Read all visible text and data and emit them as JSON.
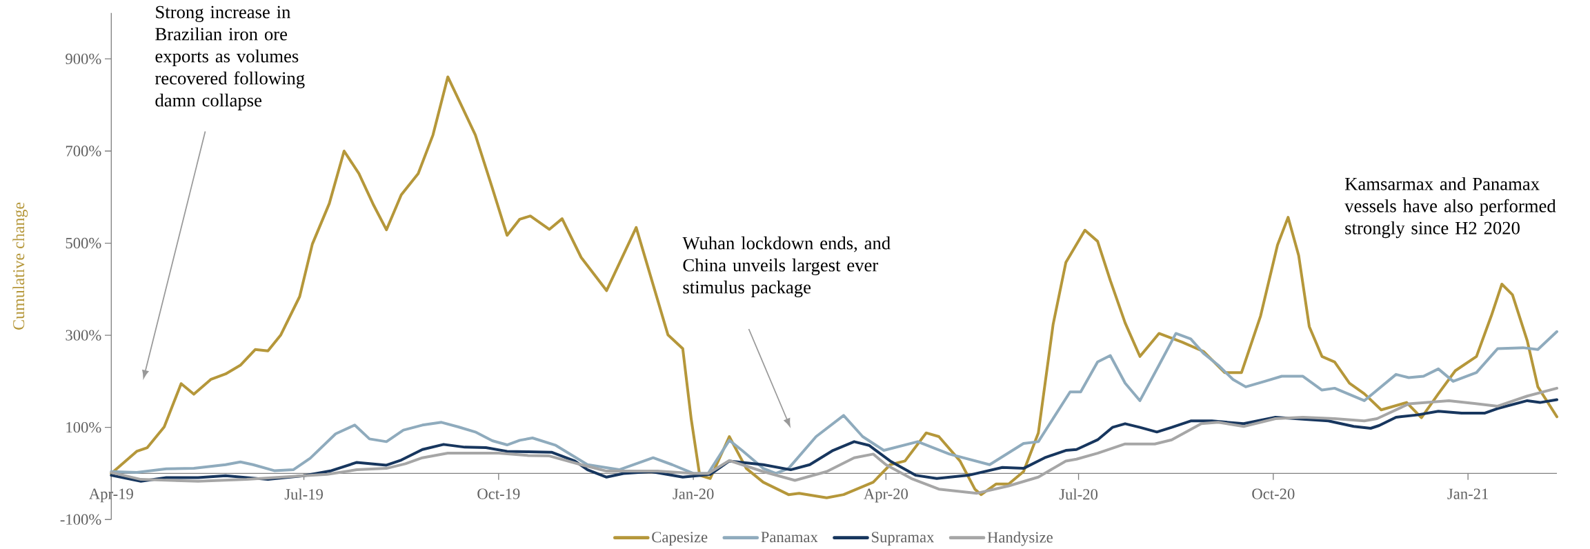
{
  "chart_data": {
    "type": "line",
    "ylabel": "Cumulative change",
    "xlim": [
      "2019-04-01",
      "2021-02-12"
    ],
    "xticks": [
      {
        "value": "2019-04-01",
        "label": "Apr-19"
      },
      {
        "value": "2019-07-01",
        "label": "Jul-19"
      },
      {
        "value": "2019-10-01",
        "label": "Oct-19"
      },
      {
        "value": "2020-01-01",
        "label": "Jan-20"
      },
      {
        "value": "2020-04-01",
        "label": "Apr-20"
      },
      {
        "value": "2020-07-01",
        "label": "Jul-20"
      },
      {
        "value": "2020-10-01",
        "label": "Oct-20"
      },
      {
        "value": "2021-01-01",
        "label": "Jan-21"
      }
    ],
    "ylim": [
      -100,
      1000
    ],
    "yticks": [
      {
        "value": -100,
        "label": "-100%"
      },
      {
        "value": 100,
        "label": "100%"
      },
      {
        "value": 300,
        "label": "300%"
      },
      {
        "value": 500,
        "label": "500%"
      },
      {
        "value": 700,
        "label": "700%"
      },
      {
        "value": 900,
        "label": "900%"
      }
    ],
    "legend": "bottom",
    "annotations": [
      "Strong increase in Brazilian iron ore exports as volumes recovered following damn collapse",
      "Wuhan lockdown ends, and China unveils largest ever stimulus package",
      "Kamsarmax and Panamax vessels have also performed strongly since H2 2020"
    ],
    "series": [
      {
        "name": "Capesize",
        "color": "#b5973a",
        "x": [
          "2019-04-01",
          "2019-04-13",
          "2019-04-18",
          "2019-04-26",
          "2019-05-04",
          "2019-05-10",
          "2019-05-18",
          "2019-05-25",
          "2019-06-01",
          "2019-06-08",
          "2019-06-14",
          "2019-06-20",
          "2019-06-29",
          "2019-07-05",
          "2019-07-13",
          "2019-07-20",
          "2019-07-27",
          "2019-08-03",
          "2019-08-09",
          "2019-08-16",
          "2019-08-24",
          "2019-08-31",
          "2019-09-07",
          "2019-09-13",
          "2019-09-20",
          "2019-09-28",
          "2019-10-05",
          "2019-10-11",
          "2019-10-16",
          "2019-10-25",
          "2019-10-31",
          "2019-11-09",
          "2019-11-21",
          "2019-12-05",
          "2019-12-20",
          "2019-12-27",
          "2019-12-31",
          "2020-01-04",
          "2020-01-09",
          "2020-01-18",
          "2020-01-26",
          "2020-02-03",
          "2020-02-15",
          "2020-02-20",
          "2020-03-04",
          "2020-03-12",
          "2020-03-26",
          "2020-04-03",
          "2020-04-10",
          "2020-04-20",
          "2020-04-26",
          "2020-05-06",
          "2020-05-13",
          "2020-05-16",
          "2020-05-23",
          "2020-05-29",
          "2020-06-05",
          "2020-06-12",
          "2020-06-19",
          "2020-06-25",
          "2020-07-04",
          "2020-07-10",
          "2020-07-16",
          "2020-07-23",
          "2020-07-30",
          "2020-08-08",
          "2020-08-19",
          "2020-08-29",
          "2020-09-08",
          "2020-09-16",
          "2020-09-25",
          "2020-10-03",
          "2020-10-08",
          "2020-10-13",
          "2020-10-18",
          "2020-10-24",
          "2020-10-30",
          "2020-11-06",
          "2020-11-13",
          "2020-11-21",
          "2020-12-03",
          "2020-12-10",
          "2020-12-18",
          "2020-12-26",
          "2021-01-05",
          "2021-01-12",
          "2021-01-17",
          "2021-01-22",
          "2021-01-29",
          "2021-02-03",
          "2021-02-12"
        ],
        "values": [
          0,
          48,
          56,
          101,
          195,
          172,
          204,
          216,
          235,
          269,
          266,
          300,
          384,
          498,
          586,
          700,
          651,
          582,
          529,
          605,
          651,
          735,
          861,
          803,
          735,
          620,
          517,
          552,
          559,
          530,
          553,
          469,
          397,
          534,
          301,
          271,
          118,
          -4,
          -11,
          80,
          11,
          -19,
          -46,
          -43,
          -53,
          -46,
          -19,
          19,
          27,
          88,
          80,
          27,
          -34,
          -46,
          -23,
          -23,
          4,
          88,
          324,
          458,
          528,
          504,
          419,
          327,
          254,
          304,
          285,
          265,
          219,
          219,
          342,
          496,
          556,
          473,
          319,
          254,
          242,
          196,
          173,
          138,
          154,
          121,
          173,
          223,
          254,
          342,
          411,
          388,
          288,
          188,
          123
        ]
      },
      {
        "name": "Panamax",
        "color": "#8fabbd",
        "x": [
          "2019-04-01",
          "2019-04-13",
          "2019-04-27",
          "2019-05-10",
          "2019-05-25",
          "2019-06-01",
          "2019-06-07",
          "2019-06-17",
          "2019-06-26",
          "2019-07-04",
          "2019-07-16",
          "2019-07-25",
          "2019-08-01",
          "2019-08-09",
          "2019-08-17",
          "2019-08-26",
          "2019-09-04",
          "2019-09-12",
          "2019-09-20",
          "2019-09-28",
          "2019-10-05",
          "2019-10-11",
          "2019-10-17",
          "2019-10-28",
          "2019-11-12",
          "2019-11-27",
          "2019-12-13",
          "2019-12-22",
          "2020-01-01",
          "2020-01-08",
          "2020-01-18",
          "2020-01-24",
          "2020-02-03",
          "2020-02-09",
          "2020-02-15",
          "2020-02-28",
          "2020-03-12",
          "2020-03-21",
          "2020-03-31",
          "2020-04-16",
          "2020-05-01",
          "2020-05-20",
          "2020-06-05",
          "2020-06-12",
          "2020-06-27",
          "2020-07-02",
          "2020-07-10",
          "2020-07-16",
          "2020-07-23",
          "2020-07-30",
          "2020-08-08",
          "2020-08-16",
          "2020-08-23",
          "2020-08-29",
          "2020-09-05",
          "2020-09-12",
          "2020-09-18",
          "2020-09-27",
          "2020-10-05",
          "2020-10-15",
          "2020-10-24",
          "2020-10-30",
          "2020-11-13",
          "2020-11-28",
          "2020-12-04",
          "2020-12-11",
          "2020-12-18",
          "2020-12-25",
          "2021-01-05",
          "2021-01-15",
          "2021-01-27",
          "2021-02-03",
          "2021-02-12"
        ],
        "values": [
          4,
          2,
          10,
          11,
          19,
          25,
          19,
          6,
          8,
          33,
          86,
          105,
          75,
          69,
          94,
          105,
          111,
          101,
          90,
          71,
          62,
          72,
          77,
          61,
          19,
          8,
          34,
          19,
          0,
          0,
          72,
          50,
          11,
          0,
          11,
          80,
          126,
          80,
          50,
          69,
          42,
          19,
          65,
          69,
          177,
          177,
          242,
          256,
          196,
          158,
          235,
          304,
          292,
          261,
          235,
          204,
          188,
          200,
          211,
          211,
          181,
          185,
          158,
          215,
          208,
          211,
          227,
          200,
          219,
          271,
          273,
          269,
          308
        ]
      },
      {
        "name": "Supramax",
        "color": "#17365e",
        "x": [
          "2019-04-01",
          "2019-04-15",
          "2019-04-27",
          "2019-05-12",
          "2019-05-25",
          "2019-06-14",
          "2019-07-01",
          "2019-07-14",
          "2019-07-26",
          "2019-08-09",
          "2019-08-16",
          "2019-08-26",
          "2019-09-05",
          "2019-09-15",
          "2019-09-25",
          "2019-10-05",
          "2019-10-15",
          "2019-10-26",
          "2019-11-06",
          "2019-11-12",
          "2019-11-21",
          "2019-11-29",
          "2019-12-12",
          "2019-12-27",
          "2020-01-09",
          "2020-01-18",
          "2020-02-03",
          "2020-02-16",
          "2020-02-25",
          "2020-03-07",
          "2020-03-17",
          "2020-03-24",
          "2020-04-03",
          "2020-04-15",
          "2020-04-25",
          "2020-05-10",
          "2020-05-26",
          "2020-06-05",
          "2020-06-15",
          "2020-06-25",
          "2020-06-30",
          "2020-07-10",
          "2020-07-17",
          "2020-07-23",
          "2020-07-30",
          "2020-08-07",
          "2020-08-14",
          "2020-08-23",
          "2020-09-02",
          "2020-09-17",
          "2020-10-02",
          "2020-10-15",
          "2020-10-27",
          "2020-11-08",
          "2020-11-16",
          "2020-11-20",
          "2020-11-28",
          "2020-12-08",
          "2020-12-18",
          "2020-12-29",
          "2021-01-09",
          "2021-01-15",
          "2021-01-29",
          "2021-02-04",
          "2021-02-12"
        ],
        "values": [
          -4,
          -17,
          -9,
          -9,
          -5,
          -13,
          -5,
          6,
          24,
          18,
          29,
          52,
          63,
          57,
          56,
          48,
          47,
          46,
          27,
          8,
          -8,
          0,
          4,
          -8,
          -2,
          27,
          19,
          8,
          19,
          50,
          69,
          61,
          27,
          -4,
          -11,
          -4,
          13,
          11,
          34,
          50,
          52,
          73,
          100,
          108,
          100,
          90,
          100,
          114,
          114,
          108,
          122,
          118,
          114,
          102,
          98,
          104,
          122,
          127,
          135,
          131,
          131,
          141,
          158,
          154,
          160
        ]
      },
      {
        "name": "Handysize",
        "color": "#a6a6a6",
        "x": [
          "2019-04-01",
          "2019-04-15",
          "2019-05-12",
          "2019-06-04",
          "2019-07-01",
          "2019-07-12",
          "2019-07-26",
          "2019-08-09",
          "2019-08-18",
          "2019-08-26",
          "2019-09-07",
          "2019-09-20",
          "2019-10-01",
          "2019-10-15",
          "2019-10-25",
          "2019-11-09",
          "2019-11-21",
          "2019-12-15",
          "2020-01-01",
          "2020-01-08",
          "2020-01-18",
          "2020-02-03",
          "2020-02-18",
          "2020-03-04",
          "2020-03-17",
          "2020-03-26",
          "2020-04-01",
          "2020-04-13",
          "2020-04-26",
          "2020-05-14",
          "2020-05-29",
          "2020-06-12",
          "2020-06-25",
          "2020-06-30",
          "2020-07-10",
          "2020-07-23",
          "2020-08-06",
          "2020-08-14",
          "2020-08-28",
          "2020-09-05",
          "2020-09-17",
          "2020-10-02",
          "2020-10-15",
          "2020-10-30",
          "2020-11-13",
          "2020-11-19",
          "2020-12-04",
          "2020-12-23",
          "2021-01-04",
          "2021-01-15",
          "2021-01-29",
          "2021-02-12"
        ],
        "values": [
          2,
          -13,
          -17,
          -13,
          -5,
          -2,
          8,
          11,
          21,
          34,
          44,
          44,
          44,
          39,
          38,
          19,
          5,
          5,
          0,
          0,
          28,
          4,
          -15,
          4,
          34,
          42,
          19,
          -11,
          -34,
          -43,
          -27,
          -8,
          27,
          31,
          44,
          64,
          64,
          73,
          108,
          111,
          102,
          119,
          122,
          119,
          114,
          119,
          151,
          158,
          152,
          146,
          168,
          185
        ]
      }
    ]
  }
}
